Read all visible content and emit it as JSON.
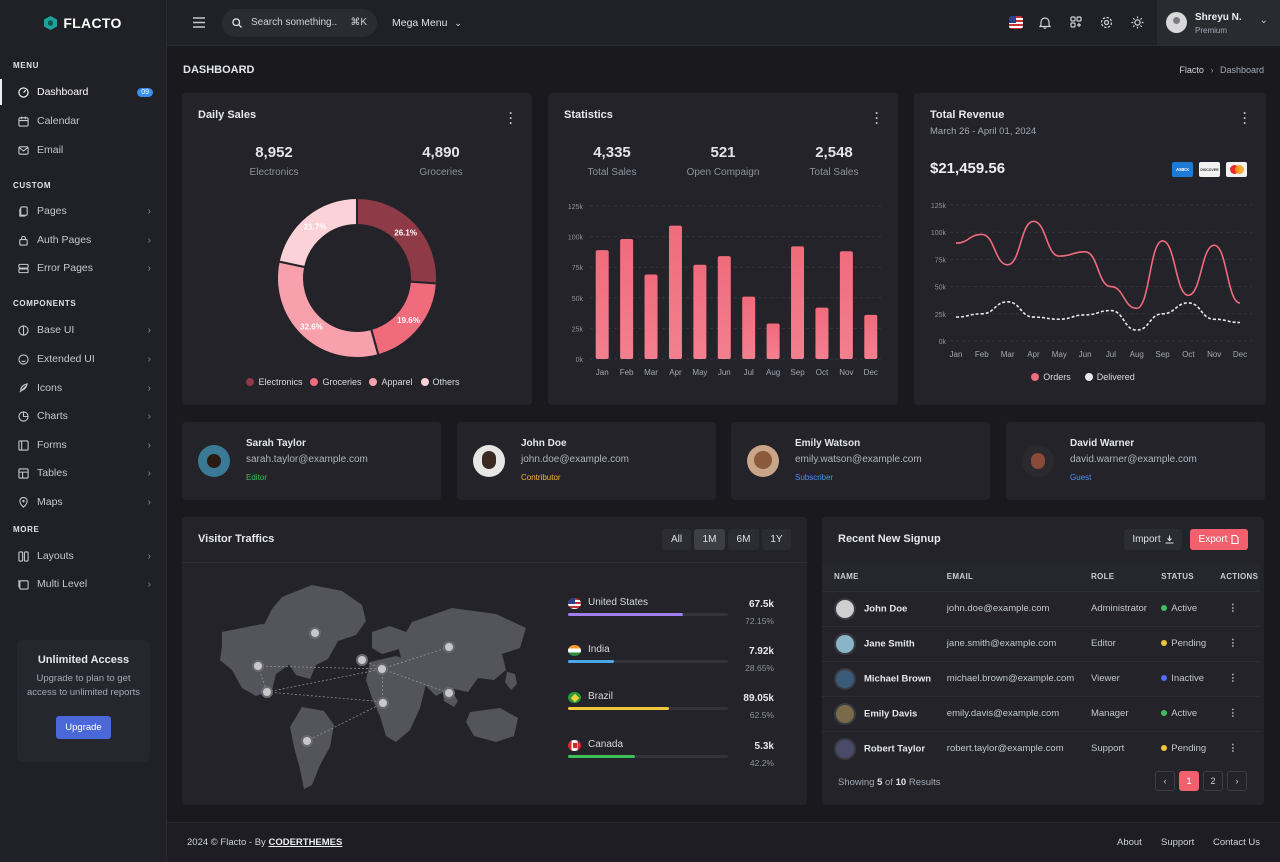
{
  "brand": {
    "name": "FLACTO"
  },
  "topbar": {
    "search_placeholder": "Search something..",
    "search_shortcut": "⌘K",
    "mega_menu": "Mega Menu",
    "user_name": "Shreyu N.",
    "user_plan": "Premium"
  },
  "sidebar": {
    "section_menu": "MENU",
    "section_custom": "CUSTOM",
    "section_components": "COMPONENTS",
    "section_more": "MORE",
    "items": [
      {
        "label": "Dashboard",
        "badge": "09"
      },
      {
        "label": "Calendar"
      },
      {
        "label": "Email"
      },
      {
        "label": "Pages"
      },
      {
        "label": "Auth Pages"
      },
      {
        "label": "Error Pages"
      },
      {
        "label": "Base UI"
      },
      {
        "label": "Extended UI"
      },
      {
        "label": "Icons"
      },
      {
        "label": "Charts"
      },
      {
        "label": "Forms"
      },
      {
        "label": "Tables"
      },
      {
        "label": "Maps"
      },
      {
        "label": "Layouts"
      },
      {
        "label": "Multi Level"
      }
    ],
    "promo": {
      "title": "Unlimited Access",
      "text": "Upgrade to plan to get access to unlimited reports",
      "button": "Upgrade"
    }
  },
  "page": {
    "title": "DASHBOARD",
    "breadcrumb_root": "Flacto",
    "breadcrumb_current": "Dashboard"
  },
  "daily_sales": {
    "title": "Daily Sales",
    "stat1_value": "8,952",
    "stat1_label": "Electronics",
    "stat2_value": "4,890",
    "stat2_label": "Groceries"
  },
  "statistics": {
    "title": "Statistics",
    "s1_value": "4,335",
    "s1_label": "Total Sales",
    "s2_value": "521",
    "s2_label": "Open Compaign",
    "s3_value": "2,548",
    "s3_label": "Total Sales"
  },
  "revenue": {
    "title": "Total Revenue",
    "date_range": "March 26 - April 01, 2024",
    "amount": "$21,459.56",
    "card1": "AMEX",
    "card2": "DISCOVER"
  },
  "chart_data": [
    {
      "type": "pie",
      "variant": "donut",
      "categories": [
        "Electronics",
        "Groceries",
        "Apparel",
        "Others"
      ],
      "values": [
        26.1,
        19.6,
        32.6,
        21.7
      ],
      "labels": [
        "26.1%",
        "19.6%",
        "32.6%",
        "21.7%"
      ],
      "colors": [
        "#8f3b47",
        "#f06b7c",
        "#f8a1ad",
        "#fbd2d8"
      ]
    },
    {
      "type": "bar",
      "categories": [
        "Jan",
        "Feb",
        "Mar",
        "Apr",
        "May",
        "Jun",
        "Jul",
        "Aug",
        "Sep",
        "Oct",
        "Nov",
        "Dec"
      ],
      "values": [
        89,
        98,
        69,
        109,
        77,
        84,
        51,
        29,
        92,
        42,
        88,
        36
      ],
      "yticks": [
        "0k",
        "25k",
        "50k",
        "75k",
        "100k",
        "125k"
      ],
      "ylim": [
        0,
        125
      ],
      "color": "#f06b7c"
    },
    {
      "type": "line",
      "categories": [
        "Jan",
        "Feb",
        "Mar",
        "Apr",
        "May",
        "Jun",
        "Jul",
        "Aug",
        "Sep",
        "Oct",
        "Nov",
        "Dec"
      ],
      "series": [
        {
          "name": "Orders",
          "values": [
            90,
            98,
            70,
            110,
            78,
            82,
            50,
            30,
            92,
            42,
            88,
            35
          ],
          "color": "#f06b7c"
        },
        {
          "name": "Delivered",
          "values": [
            22,
            25,
            36,
            22,
            20,
            24,
            28,
            10,
            25,
            35,
            20,
            17
          ],
          "color": "#e8e8ec"
        }
      ],
      "yticks": [
        "0k",
        "25k",
        "50k",
        "75k",
        "100k",
        "125k"
      ],
      "ylim": [
        0,
        125
      ]
    }
  ],
  "users": [
    {
      "name": "Sarah Taylor",
      "email": "sarah.taylor@example.com",
      "role": "Editor",
      "role_color": "#3fbf5a"
    },
    {
      "name": "John Doe",
      "email": "john.doe@example.com",
      "role": "Contributor",
      "role_color": "#f2b53c"
    },
    {
      "name": "Emily Watson",
      "email": "emily.watson@example.com",
      "role": "Subscriber",
      "role_color": "#4f8ef5"
    },
    {
      "name": "David Warner",
      "email": "david.warner@example.com",
      "role": "Guest",
      "role_color": "#4f8ef5"
    }
  ],
  "traffic": {
    "title": "Visitor Traffics",
    "tabs": [
      "All",
      "1M",
      "6M",
      "1Y"
    ],
    "countries": [
      {
        "name": "United States",
        "value": "67.5k",
        "pct": "72.15%",
        "fill": 0.72,
        "color": "#a07ef0"
      },
      {
        "name": "India",
        "value": "7.92k",
        "pct": "28.65%",
        "fill": 0.29,
        "color": "#4aa8e8"
      },
      {
        "name": "Brazil",
        "value": "89.05k",
        "pct": "62.5%",
        "fill": 0.63,
        "color": "#f2c53c"
      },
      {
        "name": "Canada",
        "value": "5.3k",
        "pct": "42.2%",
        "fill": 0.42,
        "color": "#3fbf5a"
      }
    ]
  },
  "signup": {
    "title": "Recent New Signup",
    "import": "Import",
    "export": "Export",
    "headers": [
      "NAME",
      "EMAIL",
      "ROLE",
      "STATUS",
      "ACTIONS"
    ],
    "rows": [
      {
        "name": "John Doe",
        "email": "john.doe@example.com",
        "role": "Administrator",
        "status": "Active",
        "status_color": "#3fbf5a"
      },
      {
        "name": "Jane Smith",
        "email": "jane.smith@example.com",
        "role": "Editor",
        "status": "Pending",
        "status_color": "#f2c53c"
      },
      {
        "name": "Michael Brown",
        "email": "michael.brown@example.com",
        "role": "Viewer",
        "status": "Inactive",
        "status_color": "#4f6ef5"
      },
      {
        "name": "Emily Davis",
        "email": "emily.davis@example.com",
        "role": "Manager",
        "status": "Active",
        "status_color": "#3fbf5a"
      },
      {
        "name": "Robert Taylor",
        "email": "robert.taylor@example.com",
        "role": "Support",
        "status": "Pending",
        "status_color": "#f2c53c"
      }
    ],
    "showing_prefix": "Showing",
    "showing_count": "5",
    "showing_of": "of",
    "showing_total": "10",
    "showing_suffix": "Results",
    "pages": [
      "1",
      "2"
    ]
  },
  "footer": {
    "copyright": "2024 © Flacto - By",
    "company": "CODERTHEMES",
    "links": [
      "About",
      "Support",
      "Contact Us"
    ]
  }
}
